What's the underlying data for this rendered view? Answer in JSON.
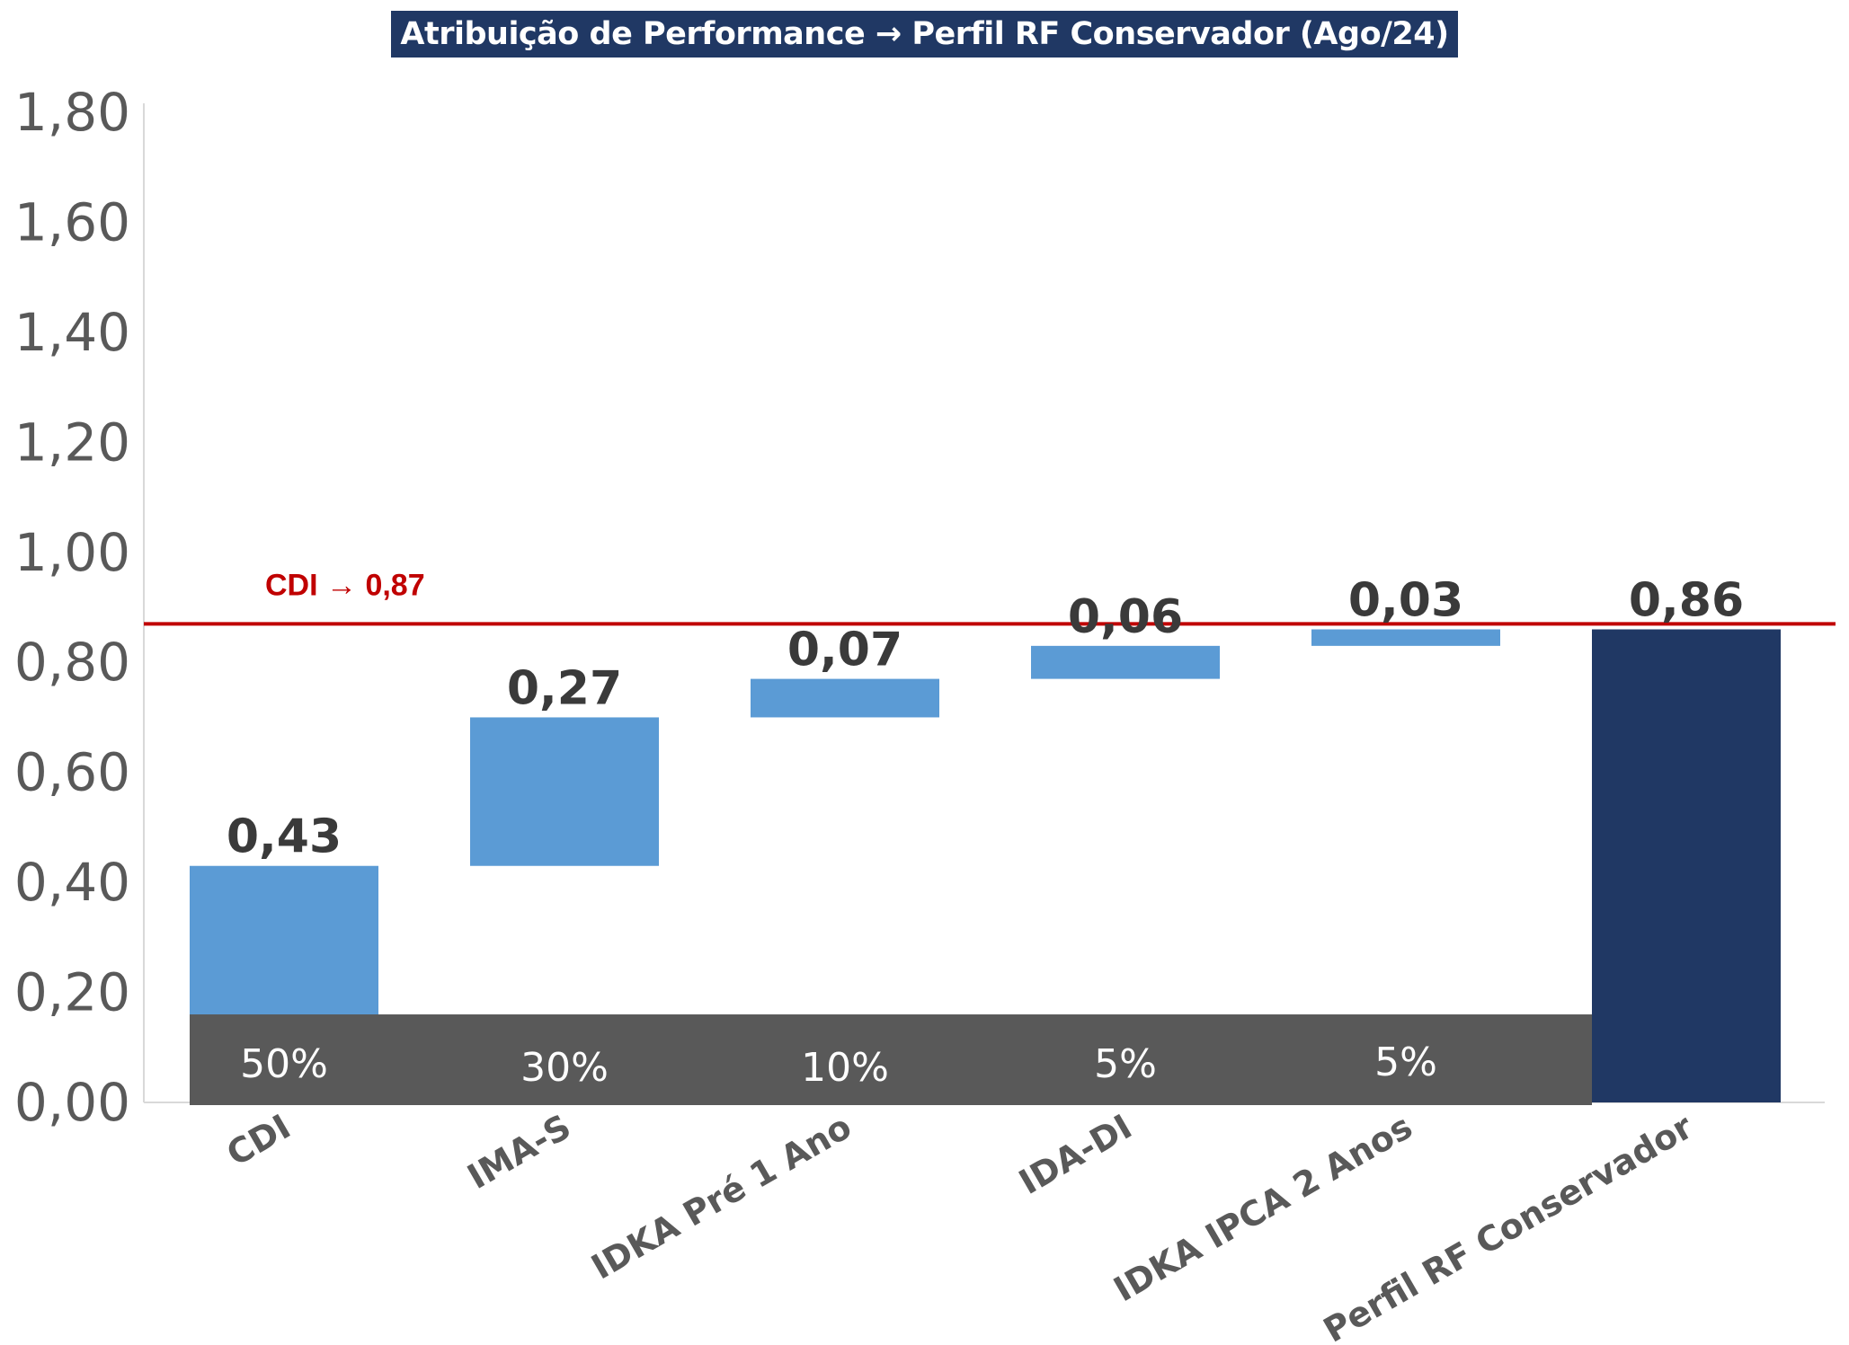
{
  "chart_data": {
    "type": "bar",
    "subtype": "waterfall",
    "title": "Atribuição de Performance → Perfil RF Conservador (Ago/24)",
    "categories": [
      "CDI",
      "IMA-S",
      "IDKA Pré 1 Ano",
      "IDA-DI",
      "IDKA IPCA 2 Anos",
      "Perfil RF Conservador"
    ],
    "values": [
      0.43,
      0.27,
      0.07,
      0.06,
      0.03,
      0.86
    ],
    "value_labels": [
      "0,43",
      "0,27",
      "0,07",
      "0,06",
      "0,03",
      "0,86"
    ],
    "bar_base": [
      0.0,
      0.43,
      0.7,
      0.77,
      0.83,
      0.0
    ],
    "bar_top": [
      0.43,
      0.7,
      0.77,
      0.83,
      0.86,
      0.86
    ],
    "weights": [
      "50%",
      "30%",
      "10%",
      "5%",
      "5%"
    ],
    "weights_band_top": 0.16,
    "ylim": [
      0,
      1.8
    ],
    "yticks": [
      "0,00",
      "0,20",
      "0,40",
      "0,60",
      "0,80",
      "1,00",
      "1,20",
      "1,40",
      "1,60",
      "1,80"
    ],
    "ytick_values": [
      0,
      0.2,
      0.4,
      0.6,
      0.8,
      1.0,
      1.2,
      1.4,
      1.6,
      1.8
    ],
    "reference_line": {
      "value": 0.87,
      "label": "CDI → 0,87",
      "color": "#c00000"
    },
    "colors": {
      "step": "#5b9bd5",
      "total": "#203864",
      "band": "#595959",
      "title_bg": "#203864"
    },
    "grid": false,
    "legend": "none",
    "xlabel": "",
    "ylabel": ""
  }
}
